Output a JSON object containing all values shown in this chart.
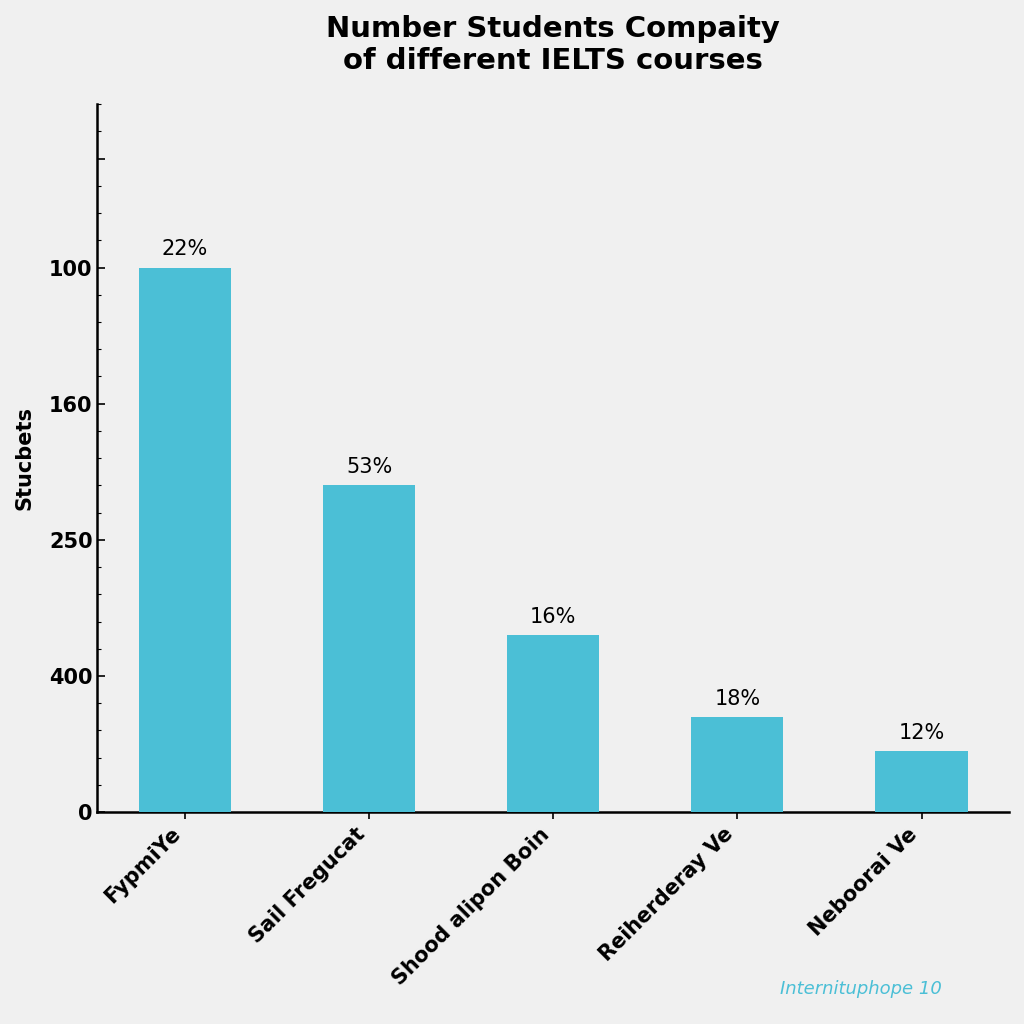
{
  "title": "Number Students Compaity\nof different IELTS courses",
  "ylabel": "Stucbets",
  "categories": [
    "FypmiYe",
    "Sail Fregucat",
    "Shood alipon Boin",
    "Reiherderay Ve",
    "Neboorai Ve"
  ],
  "bar_heights": [
    4.0,
    2.4,
    1.3,
    0.7,
    0.45
  ],
  "percentages": [
    "22%",
    "53%",
    "16%",
    "18%",
    "12%"
  ],
  "bar_color": "#4BBFD6",
  "ytick_positions": [
    0,
    1,
    2,
    3,
    4,
    4.8
  ],
  "ytick_labels": [
    "0",
    "400",
    "250",
    "160",
    "100",
    ""
  ],
  "ylim": [
    0,
    5.2
  ],
  "background_color": "#f0f0f0",
  "title_fontsize": 21,
  "ylabel_fontsize": 15,
  "tick_fontsize": 15,
  "annotation_fontsize": 15,
  "watermark": "Internituphope 10",
  "watermark_color": "#4BBFD6",
  "watermark_fontsize": 13
}
